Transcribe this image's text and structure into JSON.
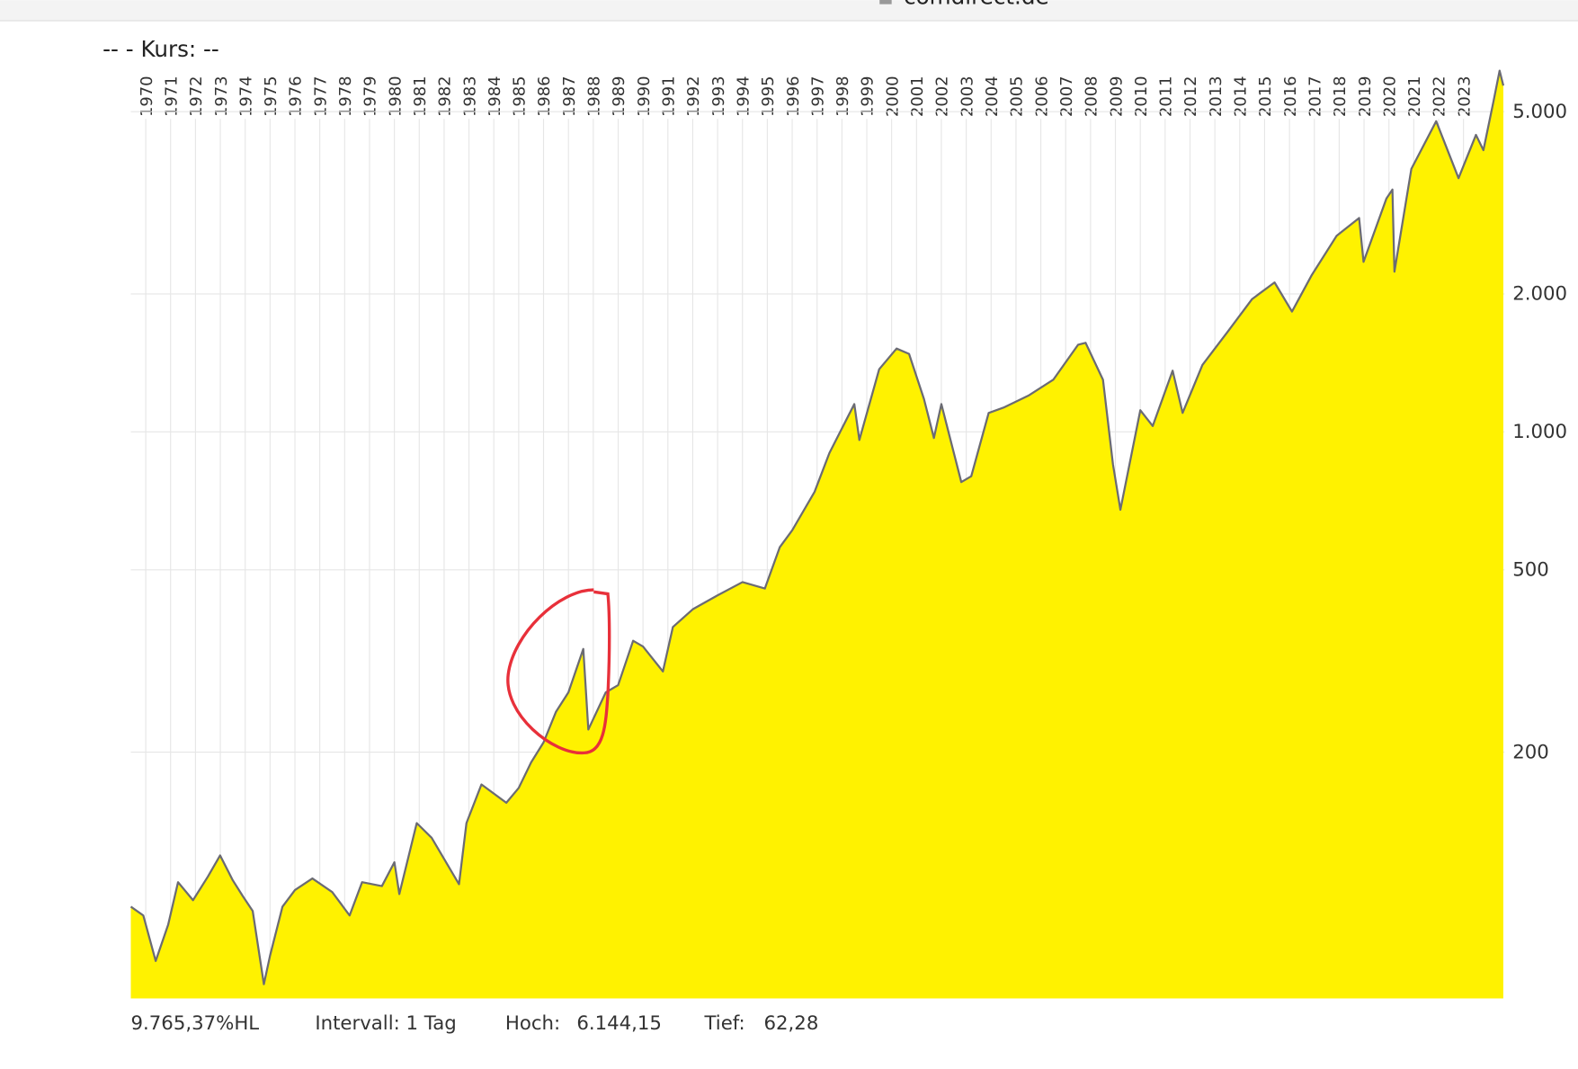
{
  "site": "comdirect.de",
  "chart_data": {
    "type": "area",
    "title": "--  - Kurs: --",
    "log_y": true,
    "grid": true,
    "fill_color": "#fff200",
    "line_color": "#6b6b73",
    "xlim": [
      1969.4,
      2024.65
    ],
    "ylim": [
      58,
      6400
    ],
    "xticks": [
      1970,
      1971,
      1972,
      1973,
      1974,
      1975,
      1976,
      1977,
      1978,
      1979,
      1980,
      1981,
      1982,
      1983,
      1984,
      1985,
      1986,
      1987,
      1988,
      1989,
      1990,
      1991,
      1992,
      1993,
      1994,
      1995,
      1996,
      1997,
      1998,
      1999,
      2000,
      2001,
      2002,
      2003,
      2004,
      2005,
      2006,
      2007,
      2008,
      2009,
      2010,
      2011,
      2012,
      2013,
      2014,
      2015,
      2016,
      2017,
      2018,
      2019,
      2020,
      2021,
      2022,
      2023
    ],
    "yticks": [
      200,
      500,
      {
        "value": 1000,
        "label": "1.000"
      },
      {
        "value": 2000,
        "label": "2.000"
      },
      {
        "value": 5000,
        "label": "5.000"
      }
    ],
    "x": [
      1969.4,
      1969.9,
      1970.4,
      1970.9,
      1971.3,
      1971.9,
      1972.5,
      1972.99,
      1973.5,
      1973.9,
      1974.3,
      1974.75,
      1975.0,
      1975.5,
      1976.0,
      1976.7,
      1977.5,
      1978.2,
      1978.7,
      1979.5,
      1980.0,
      1980.2,
      1980.9,
      1981.5,
      1982.6,
      1982.9,
      1983.5,
      1984.5,
      1985.0,
      1985.5,
      1986.0,
      1986.5,
      1987.0,
      1987.6,
      1987.8,
      1988.5,
      1989.0,
      1989.6,
      1990.0,
      1990.8,
      1991.2,
      1992.0,
      1993.0,
      1994.0,
      1994.9,
      1995.5,
      1996.0,
      1996.9,
      1997.5,
      1998.5,
      1998.7,
      1999.5,
      2000.2,
      2000.7,
      2001.3,
      2001.7,
      2002.0,
      2002.8,
      2003.2,
      2003.9,
      2004.5,
      2005.5,
      2006.5,
      2007.5,
      2007.8,
      2008.5,
      2008.9,
      2009.2,
      2010.0,
      2010.5,
      2011.3,
      2011.7,
      2012.5,
      2013.5,
      2014.5,
      2015.4,
      2016.1,
      2016.9,
      2017.9,
      2018.8,
      2018.98,
      2019.9,
      2020.14,
      2020.22,
      2020.9,
      2021.9,
      2022.8,
      2023.5,
      2023.8,
      2024.2,
      2024.45,
      2024.6
    ],
    "values": [
      92,
      88,
      70,
      84,
      104,
      95,
      107,
      119,
      105,
      97,
      90,
      62.28,
      72,
      92,
      100,
      106,
      99,
      88,
      104,
      102,
      115,
      98,
      140,
      130,
      103,
      140,
      170,
      155,
      167,
      190,
      210,
      245,
      270,
      336,
      224,
      270,
      280,
      350,
      340,
      300,
      375,
      410,
      440,
      470,
      455,
      560,
      610,
      740,
      900,
      1150,
      960,
      1370,
      1520,
      1480,
      1180,
      970,
      1150,
      777,
      800,
      1100,
      1130,
      1200,
      1300,
      1550,
      1565,
      1300,
      850,
      676,
      1115,
      1030,
      1360,
      1100,
      1400,
      1650,
      1950,
      2120,
      1830,
      2200,
      2680,
      2930,
      2350,
      3230,
      3380,
      2237,
      3750,
      4766,
      3580,
      4450,
      4120,
      5250,
      6144.15,
      5700
    ],
    "footer": {
      "range": "9.765,37%HL",
      "interval": "Intervall: 1 Tag",
      "high_label": "Hoch:",
      "high": "6.144,15",
      "low_label": "Tief:",
      "low": "62,28"
    }
  }
}
